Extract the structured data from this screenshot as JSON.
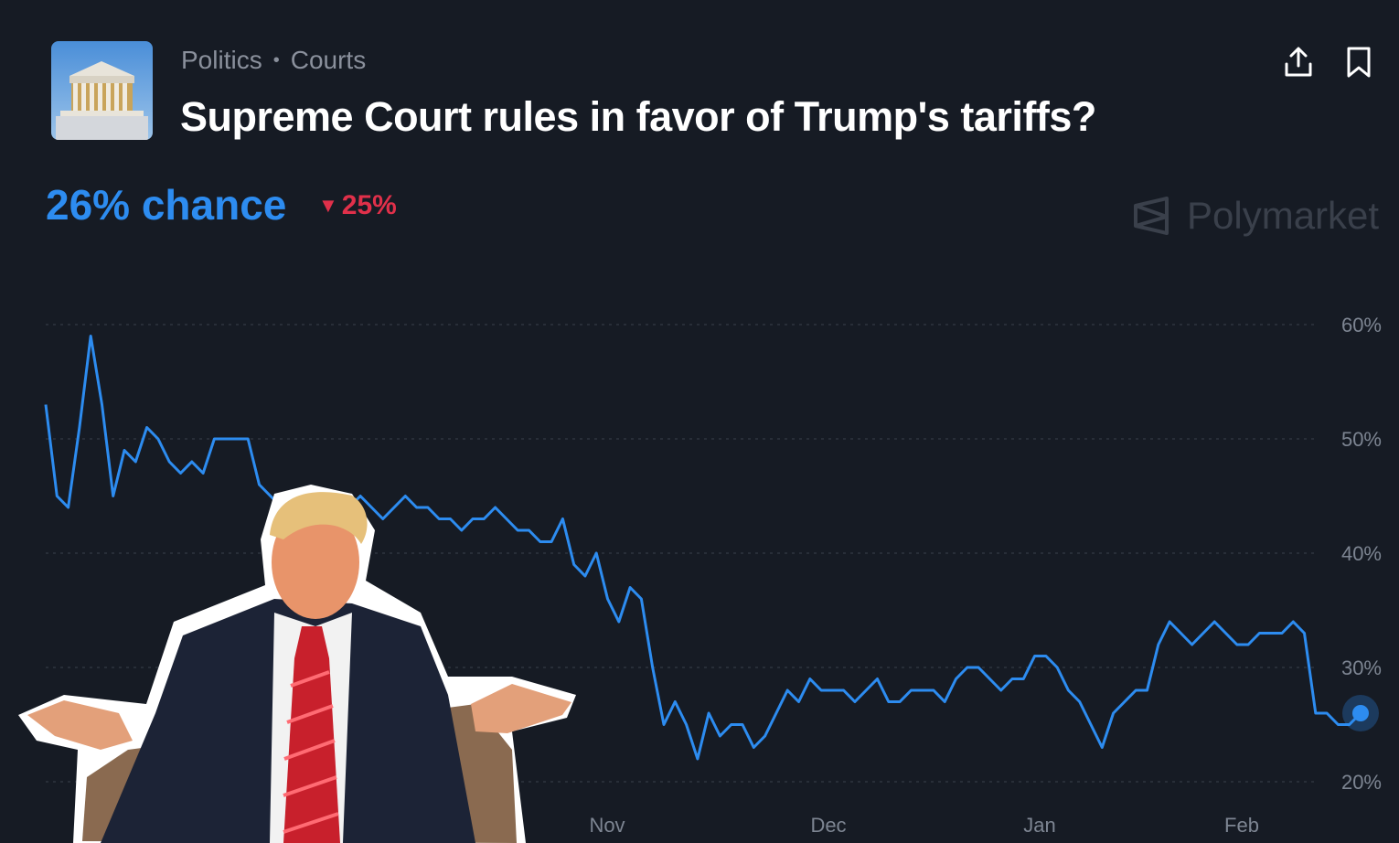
{
  "header": {
    "category": "Politics",
    "subcategory": "Courts",
    "title": "Supreme Court rules in favor of Trump's tariffs?",
    "share_icon": "share-icon",
    "bookmark_icon": "bookmark-icon",
    "thumbnail_icon": "supreme-court-image"
  },
  "stats": {
    "chance": "26% chance",
    "change": "25%",
    "change_color": "#e0304a"
  },
  "brand": {
    "name": "Polymarket"
  },
  "colors": {
    "line": "#2d8cf0",
    "background": "#161b24"
  },
  "chart_data": {
    "type": "line",
    "xlabel": "",
    "ylabel": "",
    "x_ticks": [
      "Nov",
      "Dec",
      "Jan",
      "Feb"
    ],
    "y_ticks": [
      "20%",
      "30%",
      "40%",
      "50%",
      "60%"
    ],
    "y_tick_values": [
      20,
      30,
      40,
      50,
      60
    ],
    "ylim": [
      20,
      60
    ],
    "grid": true,
    "series": [
      {
        "values": [
          53,
          45,
          44,
          51,
          59,
          53,
          45,
          49,
          48,
          51,
          50,
          48,
          47,
          48,
          47,
          50,
          50,
          50,
          50,
          46,
          45,
          44,
          43,
          44,
          43,
          42,
          43,
          44,
          45,
          44,
          43,
          44,
          45,
          44,
          44,
          43,
          43,
          42,
          43,
          43,
          44,
          43,
          42,
          42,
          41,
          41,
          43,
          39,
          38,
          40,
          36,
          34,
          37,
          36,
          30,
          25,
          27,
          25,
          22,
          26,
          24,
          25,
          25,
          23,
          24,
          26,
          28,
          27,
          29,
          28,
          28,
          28,
          27,
          28,
          29,
          27,
          27,
          28,
          28,
          28,
          27,
          29,
          30,
          30,
          29,
          28,
          29,
          29,
          31,
          31,
          30,
          28,
          27,
          25,
          23,
          26,
          27,
          28,
          28,
          32,
          34,
          33,
          32,
          33,
          34,
          33,
          32,
          32,
          33,
          33,
          33,
          34,
          33,
          26,
          26,
          25,
          25,
          26
        ]
      }
    ],
    "current_value": 26
  }
}
